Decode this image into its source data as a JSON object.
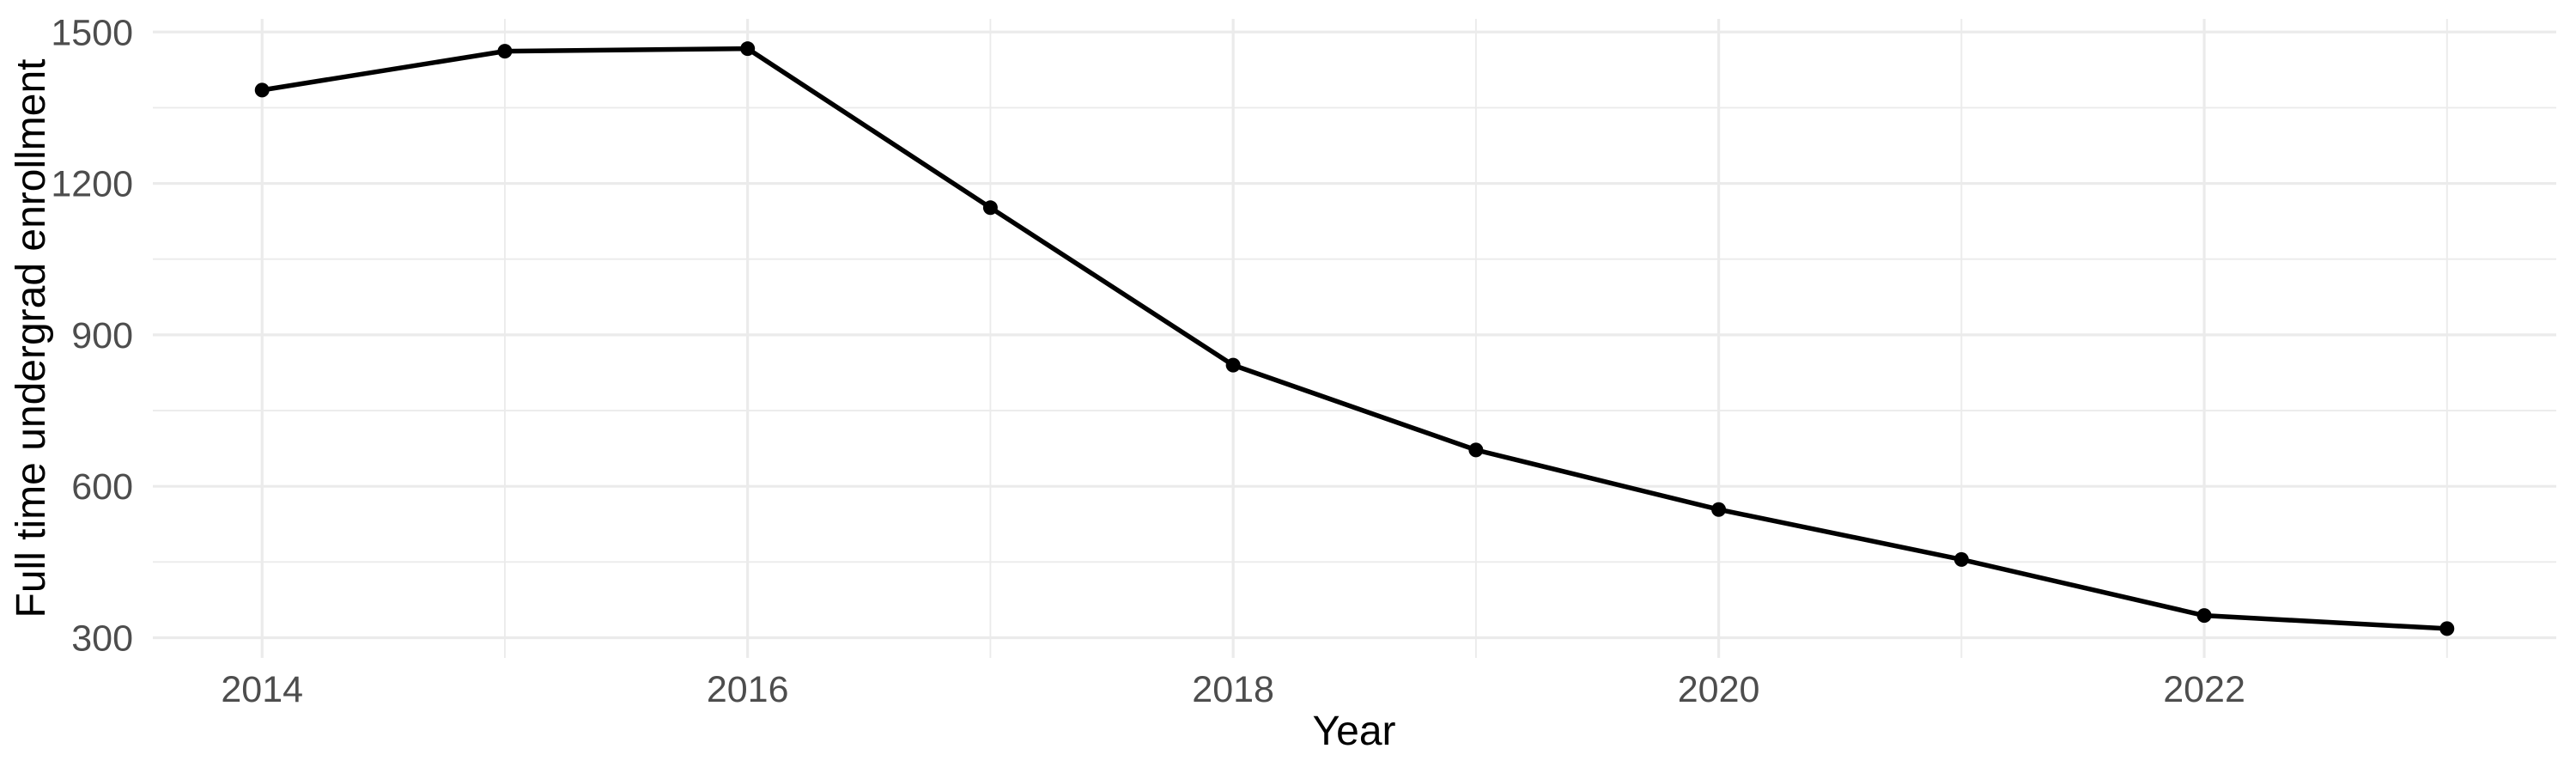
{
  "chart_data": {
    "type": "line",
    "title": "",
    "xlabel": "Year",
    "ylabel": "Full time undergrad enrollment",
    "x": [
      2014,
      2015,
      2016,
      2017,
      2018,
      2019,
      2020,
      2021,
      2022,
      2023
    ],
    "values": [
      1385,
      1462,
      1467,
      1152,
      840,
      672,
      554,
      455,
      344,
      318
    ],
    "series_name": "Full time undergrad enrollment",
    "x_major_ticks": [
      2014,
      2016,
      2018,
      2020,
      2022
    ],
    "x_minor_gridlines": [
      2015,
      2017,
      2019,
      2021,
      2023
    ],
    "y_major_ticks": [
      300,
      600,
      900,
      1200,
      1500
    ],
    "y_minor_gridlines": [
      450,
      750,
      1050,
      1350
    ],
    "xlim": [
      2013.55,
      2023.45
    ],
    "ylim": [
      260,
      1526
    ],
    "grid": "major-and-minor",
    "legend": "none",
    "marker": "point",
    "colors": {
      "line": "#000000",
      "point": "#000000",
      "grid": "#ebebeb",
      "tick_label": "#4d4d4d",
      "axis_title": "#000000",
      "background": "#ffffff"
    }
  }
}
